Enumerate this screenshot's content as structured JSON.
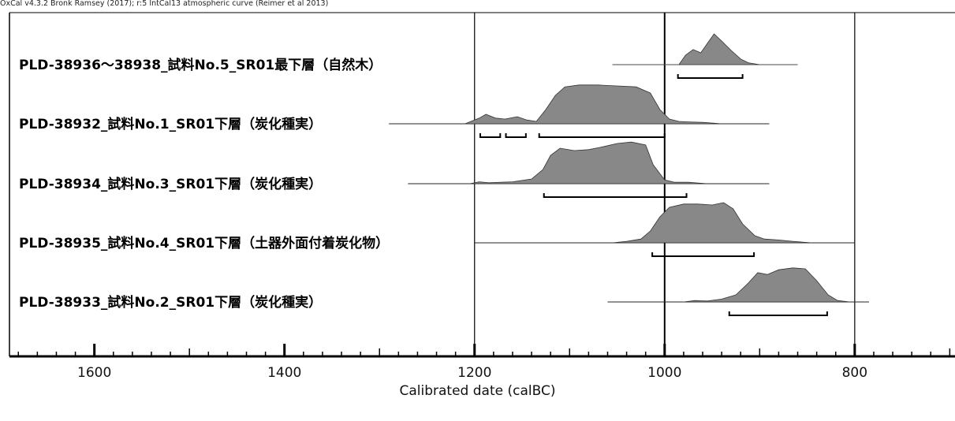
{
  "credit": "OxCal v4.3.2 Bronk Ramsey (2017); r:5 IntCal13 atmospheric curve (Reimer et al 2013)",
  "chart_data": {
    "type": "area",
    "xlabel": "Calibrated date (calBC)",
    "x_direction": "decreasing-right",
    "xlim": [
      1700,
      700
    ],
    "major_ticks": [
      1600,
      1400,
      1200,
      1000,
      800
    ],
    "tick_labels": [
      "1600",
      "1400",
      "1200",
      "1000",
      "800"
    ],
    "minor_tick_step": 20,
    "reference_lines": [
      1200,
      1000,
      800
    ],
    "colors": {
      "fill": "#888888",
      "line": "#000000"
    },
    "series": [
      {
        "name": "PLD-38936～38938_試料No.5_SR01最下層（自然木）",
        "range": [
          1055,
          860
        ],
        "density": [
          [
            1055,
            0
          ],
          [
            985,
            0
          ],
          [
            978,
            0.2
          ],
          [
            970,
            0.32
          ],
          [
            962,
            0.25
          ],
          [
            955,
            0.45
          ],
          [
            948,
            0.65
          ],
          [
            940,
            0.5
          ],
          [
            930,
            0.3
          ],
          [
            920,
            0.12
          ],
          [
            912,
            0.04
          ],
          [
            900,
            0
          ],
          [
            860,
            0
          ]
        ],
        "hpd_intervals": [
          [
            986,
            918
          ]
        ]
      },
      {
        "name": "PLD-38932_試料No.1_SR01下層（炭化種実）",
        "range": [
          1290,
          890
        ],
        "density": [
          [
            1290,
            0
          ],
          [
            1210,
            0
          ],
          [
            1195,
            0.12
          ],
          [
            1188,
            0.2
          ],
          [
            1178,
            0.12
          ],
          [
            1168,
            0.1
          ],
          [
            1155,
            0.15
          ],
          [
            1145,
            0.08
          ],
          [
            1135,
            0.05
          ],
          [
            1125,
            0.3
          ],
          [
            1115,
            0.6
          ],
          [
            1105,
            0.78
          ],
          [
            1090,
            0.82
          ],
          [
            1070,
            0.82
          ],
          [
            1050,
            0.8
          ],
          [
            1030,
            0.78
          ],
          [
            1015,
            0.65
          ],
          [
            1005,
            0.3
          ],
          [
            995,
            0.1
          ],
          [
            985,
            0.05
          ],
          [
            975,
            0.04
          ],
          [
            960,
            0.03
          ],
          [
            940,
            0
          ],
          [
            890,
            0
          ]
        ],
        "hpd_intervals": [
          [
            1194,
            1173
          ],
          [
            1167,
            1146
          ],
          [
            1132,
            1000
          ]
        ]
      },
      {
        "name": "PLD-38934_試料No.3_SR01下層（炭化種実）",
        "range": [
          1270,
          890
        ],
        "density": [
          [
            1270,
            0
          ],
          [
            1205,
            0
          ],
          [
            1195,
            0.04
          ],
          [
            1185,
            0.02
          ],
          [
            1160,
            0.04
          ],
          [
            1140,
            0.1
          ],
          [
            1128,
            0.3
          ],
          [
            1120,
            0.6
          ],
          [
            1110,
            0.75
          ],
          [
            1095,
            0.7
          ],
          [
            1080,
            0.72
          ],
          [
            1065,
            0.78
          ],
          [
            1050,
            0.85
          ],
          [
            1035,
            0.88
          ],
          [
            1020,
            0.82
          ],
          [
            1012,
            0.4
          ],
          [
            1000,
            0.08
          ],
          [
            990,
            0.03
          ],
          [
            975,
            0.03
          ],
          [
            955,
            0
          ],
          [
            890,
            0
          ]
        ],
        "hpd_intervals": [
          [
            1127,
            977
          ]
        ]
      },
      {
        "name": "PLD-38935_試料No.4_SR01下層（土器外面付着炭化物）",
        "range": [
          1200,
          800
        ],
        "density": [
          [
            1200,
            0
          ],
          [
            1055,
            0
          ],
          [
            1040,
            0.03
          ],
          [
            1025,
            0.08
          ],
          [
            1015,
            0.25
          ],
          [
            1005,
            0.55
          ],
          [
            995,
            0.75
          ],
          [
            980,
            0.82
          ],
          [
            965,
            0.82
          ],
          [
            950,
            0.8
          ],
          [
            938,
            0.85
          ],
          [
            928,
            0.72
          ],
          [
            918,
            0.4
          ],
          [
            905,
            0.15
          ],
          [
            895,
            0.08
          ],
          [
            880,
            0.06
          ],
          [
            865,
            0.03
          ],
          [
            845,
            0
          ],
          [
            800,
            0
          ]
        ],
        "hpd_intervals": [
          [
            1013,
            906
          ]
        ]
      },
      {
        "name": "PLD-38933_試料No.2_SR01下層（炭化種実）",
        "range": [
          1060,
          785
        ],
        "density": [
          [
            1060,
            0
          ],
          [
            980,
            0
          ],
          [
            968,
            0.03
          ],
          [
            955,
            0.02
          ],
          [
            940,
            0.06
          ],
          [
            925,
            0.15
          ],
          [
            912,
            0.4
          ],
          [
            902,
            0.62
          ],
          [
            892,
            0.58
          ],
          [
            880,
            0.68
          ],
          [
            865,
            0.72
          ],
          [
            852,
            0.7
          ],
          [
            840,
            0.45
          ],
          [
            828,
            0.15
          ],
          [
            818,
            0.03
          ],
          [
            805,
            0
          ],
          [
            785,
            0
          ]
        ],
        "hpd_intervals": [
          [
            932,
            829
          ]
        ]
      }
    ]
  }
}
